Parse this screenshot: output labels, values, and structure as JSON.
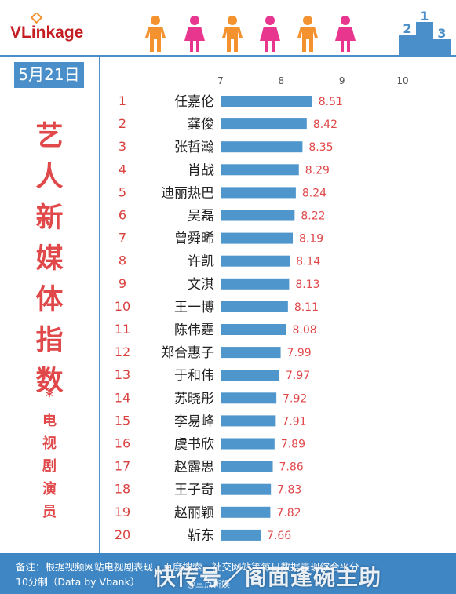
{
  "brand": {
    "logo_text": "VLinkage"
  },
  "date": "5月21日",
  "title": {
    "main_chars": [
      "艺",
      "人",
      "新",
      "媒",
      "体",
      "指",
      "数"
    ],
    "star": "*",
    "sub_chars": [
      "电",
      "视",
      "剧",
      "演",
      "员"
    ]
  },
  "colors": {
    "accent_blue": "#4a8fc9",
    "bar_blue": "#4f96cc",
    "label_red": "#e0484a",
    "person_orange": "#f3922e",
    "person_pink": "#e8368f"
  },
  "header_icons": [
    "person-orange-icon",
    "person-pink-icon",
    "person-orange-icon",
    "person-pink-icon",
    "person-orange-icon",
    "person-pink-icon"
  ],
  "chart_data": {
    "type": "bar",
    "orientation": "horizontal",
    "xlim": [
      7,
      10
    ],
    "xticks": [
      7,
      8,
      9,
      10
    ],
    "ranks": [
      "1",
      "2",
      "3",
      "4",
      "5",
      "6",
      "7",
      "8",
      "9",
      "10",
      "11",
      "12",
      "13",
      "14",
      "15",
      "16",
      "17",
      "18",
      "19",
      "20"
    ],
    "categories": [
      "任嘉伦",
      "龚俊",
      "张哲瀚",
      "肖战",
      "迪丽热巴",
      "吴磊",
      "曾舜晞",
      "许凯",
      "文淇",
      "王一博",
      "陈伟霆",
      "郑合惠子",
      "于和伟",
      "苏晓彤",
      "李易峰",
      "虞书欣",
      "赵露思",
      "王子奇",
      "赵丽颖",
      "靳东"
    ],
    "values": [
      8.51,
      8.42,
      8.35,
      8.29,
      8.24,
      8.22,
      8.19,
      8.14,
      8.13,
      8.11,
      8.08,
      7.99,
      7.97,
      7.92,
      7.91,
      7.89,
      7.86,
      7.83,
      7.82,
      7.66
    ],
    "value_labels": [
      "8.51",
      "8.42",
      "8.35",
      "8.29",
      "8.24",
      "8.22",
      "8.19",
      "8.14",
      "8.13",
      "8.11",
      "8.08",
      "7.99",
      "7.97",
      "7.92",
      "7.91",
      "7.89",
      "7.86",
      "7.83",
      "7.82",
      "7.66"
    ]
  },
  "footer": {
    "line1": "备注：根据视频网站电视剧表现，百度搜索，社交网站等每日数据表现综合平分",
    "line2": "10分制（Data by Vbank）"
  },
  "watermark": {
    "main": "快传号／阁面逢碗主助",
    "small": "@三点新娱"
  }
}
